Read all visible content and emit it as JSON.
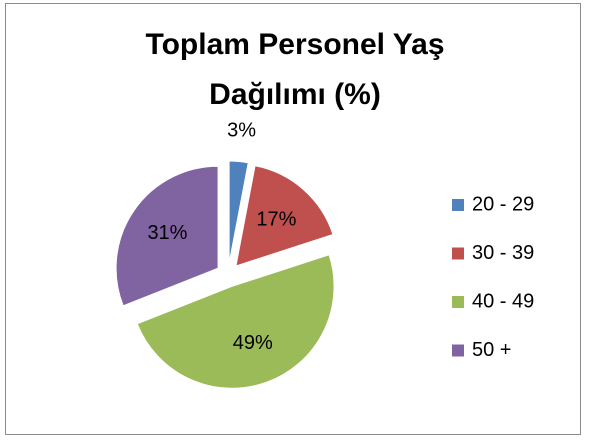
{
  "chart_data": {
    "type": "pie",
    "title": "Toplam Personel Yaş Dağılımı (%)",
    "categories": [
      "20 - 29",
      "30 - 39",
      "40 - 49",
      "50 +"
    ],
    "values": [
      3,
      17,
      49,
      31
    ],
    "value_labels": [
      "3%",
      "17%",
      "49%",
      "31%"
    ],
    "colors": [
      "#4f81bd",
      "#c0504d",
      "#9bbb59",
      "#8064a2"
    ],
    "legend": "right"
  }
}
